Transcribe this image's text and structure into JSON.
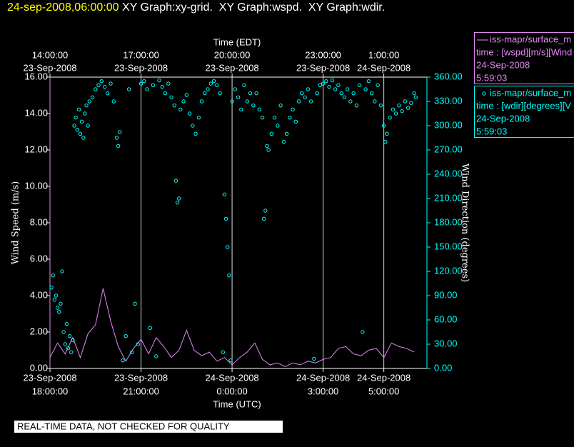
{
  "chart_data": {
    "type": "line-scatter",
    "timestamp": "24-sep-2008,06:00:00",
    "title": " XY Graph:xy-grid.  XY Graph:wspd.  XY Graph:wdir.",
    "xlabel": "Time (UTC)",
    "x2label": "Time (EDT)",
    "ylabel": "Wind Speed (m/s)",
    "y2label": "Wind Direction (degrees)",
    "footer": "REAL-TIME DATA, NOT CHECKED FOR QUALITY",
    "grid": "x",
    "xlim": [
      0,
      12.42
    ],
    "xticks": [
      {
        "value": 0,
        "label": [
          "23-Sep-2008",
          "18:00:00"
        ]
      },
      {
        "value": 3,
        "label": [
          "23-Sep-2008",
          "21:00:00"
        ]
      },
      {
        "value": 6,
        "label": [
          "24-Sep-2008",
          "0:00:00"
        ]
      },
      {
        "value": 9,
        "label": [
          "24-Sep-2008",
          "3:00:00"
        ]
      },
      {
        "value": 11,
        "label": [
          "24-Sep-2008",
          "5:00:00"
        ]
      }
    ],
    "x2ticks": [
      {
        "value": 0,
        "label": [
          "14:00:00",
          "23-Sep-2008"
        ]
      },
      {
        "value": 3,
        "label": [
          "17:00:00",
          "23-Sep-2008"
        ]
      },
      {
        "value": 6,
        "label": [
          "20:00:00",
          "23-Sep-2008"
        ]
      },
      {
        "value": 9,
        "label": [
          "23:00:00",
          "23-Sep-2008"
        ]
      },
      {
        "value": 11,
        "label": [
          "1:00:00",
          "24-Sep-2008"
        ]
      }
    ],
    "ylim": [
      0,
      16
    ],
    "yticks": [
      {
        "value": 0,
        "label": "0.00"
      },
      {
        "value": 2,
        "label": "2.00"
      },
      {
        "value": 4,
        "label": "4.00"
      },
      {
        "value": 6,
        "label": "6.00"
      },
      {
        "value": 8,
        "label": "8.00"
      },
      {
        "value": 10,
        "label": "10.00"
      },
      {
        "value": 12,
        "label": "12.00"
      },
      {
        "value": 14,
        "label": "14.00"
      },
      {
        "value": 16,
        "label": "16.00"
      }
    ],
    "y2lim": [
      0,
      360
    ],
    "y2ticks": [
      {
        "value": 0,
        "label": "0.00"
      },
      {
        "value": 30,
        "label": "30.00"
      },
      {
        "value": 60,
        "label": "60.00"
      },
      {
        "value": 90,
        "label": "90.00"
      },
      {
        "value": 120,
        "label": "120.00"
      },
      {
        "value": 150,
        "label": "150.00"
      },
      {
        "value": 180,
        "label": "180.00"
      },
      {
        "value": 210,
        "label": "210.00"
      },
      {
        "value": 240,
        "label": "240.00"
      },
      {
        "value": 270,
        "label": "270.00"
      },
      {
        "value": 300,
        "label": "300.00"
      },
      {
        "value": 330,
        "label": "330.00"
      },
      {
        "value": 360,
        "label": "360.00"
      }
    ],
    "series": [
      {
        "name": "iss-mapr/surface_m",
        "mark": "line",
        "color": "#e088f0",
        "legend_detail": [
          "time : [wspd][m/s][Wind",
          "24-Sep-2008",
          "5:59:03"
        ],
        "x": [
          0,
          0.25,
          0.5,
          0.75,
          1,
          1.25,
          1.5,
          1.75,
          2,
          2.25,
          2.5,
          2.75,
          3,
          3.25,
          3.5,
          3.75,
          4,
          4.25,
          4.5,
          4.75,
          5,
          5.25,
          5.5,
          5.75,
          6,
          6.25,
          6.5,
          6.75,
          7,
          7.25,
          7.5,
          7.75,
          8,
          8.25,
          8.5,
          8.75,
          9,
          9.25,
          9.5,
          9.75,
          10,
          10.25,
          10.5,
          10.75,
          11,
          11.25,
          11.5,
          11.75,
          12
        ],
        "values": [
          0.6,
          1.4,
          0.8,
          1.7,
          0.6,
          1.9,
          2.4,
          4.4,
          2.6,
          1.2,
          0.4,
          1.1,
          1.6,
          0.8,
          1.7,
          1.2,
          0.6,
          1.0,
          2.1,
          1.0,
          0.7,
          0.9,
          0.4,
          0.6,
          0.2,
          0.6,
          0.9,
          1.4,
          0.5,
          0.2,
          0.3,
          0.1,
          0.3,
          0.2,
          0.4,
          0.3,
          0.5,
          0.6,
          1.1,
          1.2,
          0.8,
          0.7,
          1.0,
          1.1,
          0.6,
          1.4,
          1.2,
          1.1,
          0.9
        ]
      },
      {
        "name": "iss-mapr/surface_m",
        "mark": "scatter",
        "axis": "y2",
        "color": "#00ffff",
        "legend_detail": [
          "time : [wdir][degrees][V",
          "24-Sep-2008",
          "5:59:03"
        ],
        "x": [
          0.05,
          0.1,
          0.15,
          0.2,
          0.25,
          0.3,
          0.35,
          0.4,
          0.45,
          0.5,
          0.55,
          0.6,
          0.65,
          0.7,
          0.75,
          0.8,
          0.85,
          0.9,
          0.95,
          1.0,
          1.05,
          1.1,
          1.15,
          1.2,
          1.25,
          1.3,
          1.4,
          1.5,
          1.6,
          1.7,
          1.8,
          1.9,
          2.0,
          2.1,
          2.2,
          2.25,
          2.3,
          2.4,
          2.5,
          2.6,
          2.7,
          2.8,
          2.9,
          3.0,
          3.1,
          3.2,
          3.3,
          3.4,
          3.5,
          3.6,
          3.7,
          3.8,
          3.9,
          4.0,
          4.1,
          4.15,
          4.2,
          4.25,
          4.3,
          4.4,
          4.5,
          4.6,
          4.7,
          4.8,
          4.9,
          5.0,
          5.1,
          5.2,
          5.3,
          5.4,
          5.5,
          5.6,
          5.7,
          5.75,
          5.8,
          5.85,
          5.9,
          5.95,
          6.0,
          6.1,
          6.2,
          6.3,
          6.4,
          6.5,
          6.6,
          6.7,
          6.8,
          6.9,
          7.0,
          7.05,
          7.1,
          7.15,
          7.2,
          7.3,
          7.4,
          7.5,
          7.6,
          7.7,
          7.8,
          7.9,
          8.0,
          8.1,
          8.2,
          8.3,
          8.4,
          8.5,
          8.6,
          8.7,
          8.8,
          8.9,
          9.0,
          9.1,
          9.2,
          9.3,
          9.4,
          9.5,
          9.6,
          9.7,
          9.8,
          9.9,
          10.0,
          10.1,
          10.2,
          10.3,
          10.4,
          10.5,
          10.6,
          10.7,
          10.8,
          10.9,
          11.0,
          11.05,
          11.1,
          11.2,
          11.3,
          11.4,
          11.5,
          11.6,
          11.7,
          11.8,
          11.9,
          12.0,
          12.05
        ],
        "values": [
          100,
          115,
          85,
          90,
          75,
          70,
          80,
          120,
          45,
          30,
          55,
          25,
          40,
          20,
          35,
          300,
          310,
          295,
          320,
          290,
          305,
          285,
          315,
          325,
          300,
          330,
          335,
          345,
          350,
          355,
          348,
          340,
          352,
          330,
          285,
          275,
          292,
          10,
          40,
          345,
          20,
          80,
          30,
          352,
          355,
          345,
          50,
          350,
          15,
          356,
          348,
          340,
          352,
          335,
          325,
          232,
          205,
          210,
          320,
          330,
          338,
          315,
          300,
          290,
          310,
          330,
          340,
          345,
          352,
          355,
          350,
          340,
          20,
          215,
          185,
          150,
          115,
          10,
          330,
          345,
          335,
          320,
          350,
          330,
          340,
          325,
          340,
          320,
          310,
          185,
          195,
          275,
          270,
          290,
          310,
          300,
          325,
          280,
          290,
          310,
          320,
          305,
          330,
          340,
          335,
          345,
          330,
          12,
          340,
          350,
          352,
          355,
          348,
          356,
          345,
          350,
          340,
          335,
          345,
          330,
          340,
          325,
          350,
          45,
          345,
          355,
          340,
          330,
          350,
          325,
          300,
          280,
          290,
          310,
          320,
          315,
          325,
          318,
          330,
          322,
          328,
          340,
          335
        ]
      }
    ]
  }
}
